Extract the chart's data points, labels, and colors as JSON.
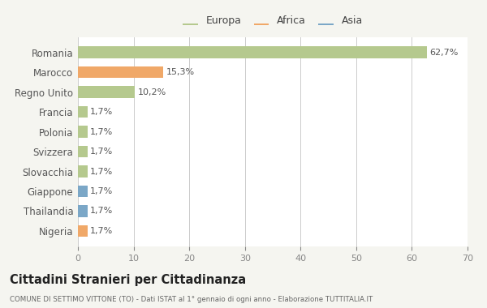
{
  "categories": [
    "Romania",
    "Marocco",
    "Regno Unito",
    "Francia",
    "Polonia",
    "Svizzera",
    "Slovacchia",
    "Giappone",
    "Thailandia",
    "Nigeria"
  ],
  "values": [
    62.7,
    15.3,
    10.2,
    1.7,
    1.7,
    1.7,
    1.7,
    1.7,
    1.7,
    1.7
  ],
  "labels": [
    "62,7%",
    "15,3%",
    "10,2%",
    "1,7%",
    "1,7%",
    "1,7%",
    "1,7%",
    "1,7%",
    "1,7%",
    "1,7%"
  ],
  "colors": [
    "#b5c98e",
    "#f0a868",
    "#b5c98e",
    "#b5c98e",
    "#b5c98e",
    "#b5c98e",
    "#b5c98e",
    "#7ba7c7",
    "#7ba7c7",
    "#f0a868"
  ],
  "legend_labels": [
    "Europa",
    "Africa",
    "Asia"
  ],
  "legend_colors": [
    "#b5c98e",
    "#f0a868",
    "#7ba7c7"
  ],
  "xlim": [
    0,
    70
  ],
  "xticks": [
    0,
    10,
    20,
    30,
    40,
    50,
    60,
    70
  ],
  "title": "Cittadini Stranieri per Cittadinanza",
  "subtitle": "COMUNE DI SETTIMO VITTONE (TO) - Dati ISTAT al 1° gennaio di ogni anno - Elaborazione TUTTITALIA.IT",
  "bg_color": "#f5f5f0",
  "bar_bg_color": "#ffffff",
  "grid_color": "#cccccc"
}
